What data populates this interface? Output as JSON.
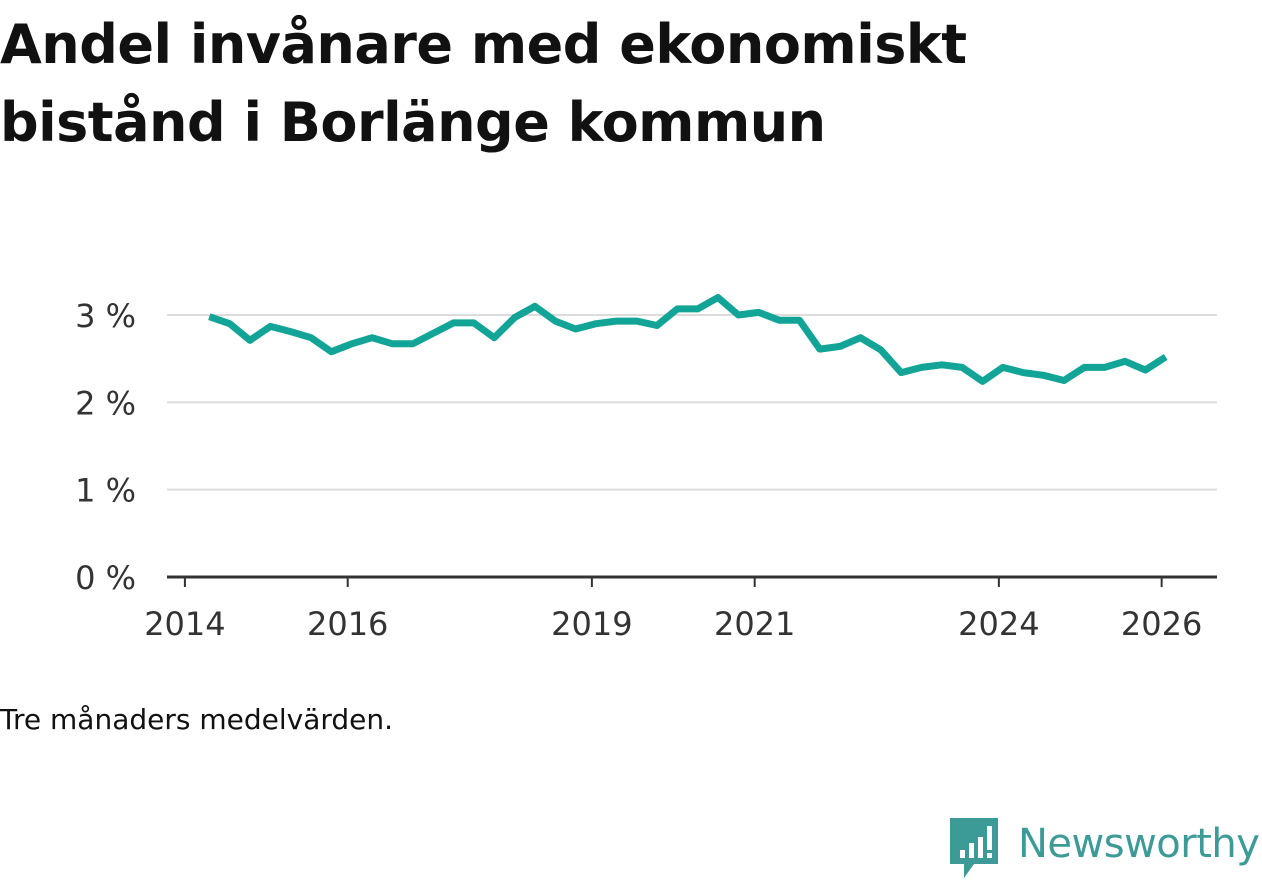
{
  "title": "Andel invånare med ekonomiskt bistånd i Borlänge kommun",
  "footnote": "Tre månaders medelvärden.",
  "brand": {
    "name": "Newsworthy",
    "logo_icon": "newsworthy-chat-bars-icon",
    "color": "#3c9a97"
  },
  "colors": {
    "line": "#12a597",
    "grid": "#dcdcdc",
    "axis": "#333333",
    "tick_text": "#333333"
  },
  "chart_data": {
    "type": "line",
    "title": "Andel invånare med ekonomiskt bistånd i Borlänge kommun",
    "xlabel": "",
    "ylabel": "",
    "x_unit": "quarter (decimal year)",
    "y_unit": "percent",
    "xlim": [
      2013.78,
      2026.68
    ],
    "ylim": [
      0,
      3
    ],
    "x_ticks": [
      2014,
      2016,
      2019,
      2021,
      2024,
      2026
    ],
    "x_tick_labels": [
      "2014",
      "2016",
      "2019",
      "2021",
      "2024",
      "2026"
    ],
    "y_ticks": [
      0,
      1,
      2,
      3
    ],
    "y_tick_labels": [
      "0 %",
      "1 %",
      "2 %",
      "3 %"
    ],
    "grid": true,
    "legend": "none",
    "series": [
      {
        "name": "Borlänge kommun",
        "x": [
          2014.3,
          2014.55,
          2014.8,
          2015.05,
          2015.3,
          2015.55,
          2015.8,
          2016.05,
          2016.3,
          2016.55,
          2016.8,
          2017.05,
          2017.3,
          2017.55,
          2017.8,
          2018.05,
          2018.3,
          2018.55,
          2018.8,
          2019.05,
          2019.3,
          2019.55,
          2019.8,
          2020.05,
          2020.3,
          2020.55,
          2020.8,
          2021.05,
          2021.3,
          2021.55,
          2021.8,
          2022.05,
          2022.3,
          2022.55,
          2022.8,
          2023.05,
          2023.3,
          2023.55,
          2023.8,
          2024.05,
          2024.3,
          2024.55,
          2024.8,
          2025.05,
          2025.3,
          2025.55,
          2025.8,
          2026.05
        ],
        "values": [
          2.98,
          2.9,
          2.71,
          2.87,
          2.81,
          2.74,
          2.58,
          2.67,
          2.74,
          2.67,
          2.67,
          2.79,
          2.91,
          2.91,
          2.74,
          2.97,
          3.1,
          2.93,
          2.84,
          2.9,
          2.93,
          2.93,
          2.88,
          3.07,
          3.07,
          3.2,
          3.0,
          3.03,
          2.94,
          2.94,
          2.61,
          2.64,
          2.74,
          2.6,
          2.34,
          2.4,
          2.43,
          2.4,
          2.24,
          2.4,
          2.34,
          2.31,
          2.25,
          2.4,
          2.4,
          2.47,
          2.37,
          2.52
        ]
      }
    ]
  }
}
